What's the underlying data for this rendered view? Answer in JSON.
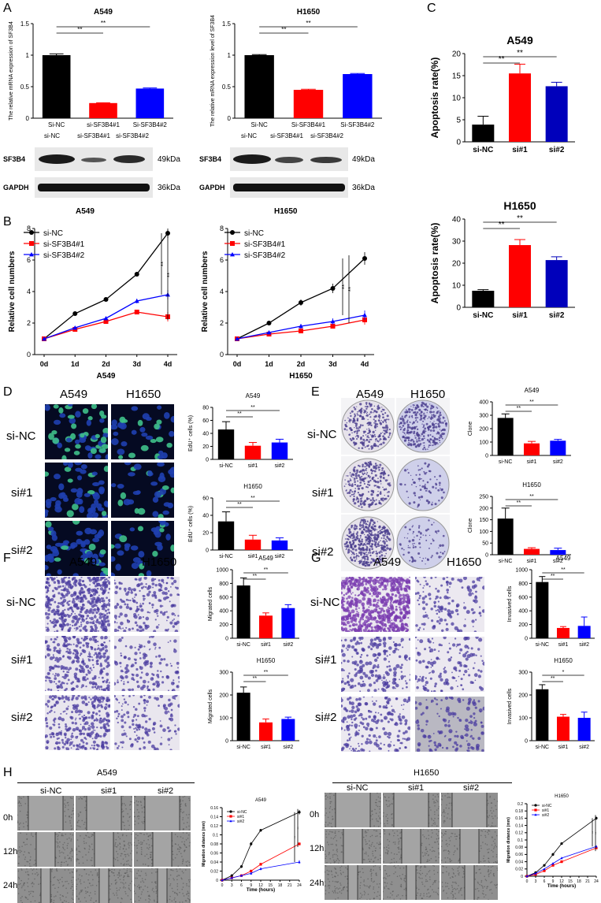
{
  "panels": {
    "A": "A",
    "B": "B",
    "C": "C",
    "D": "D",
    "E": "E",
    "F": "F",
    "G": "G",
    "H": "H"
  },
  "sig": {
    "dstar": "**",
    "star": "*"
  },
  "groups_long": [
    "si-NC",
    "si-SF3B4#1",
    "si-SF3B4#2"
  ],
  "groups_short": [
    "si-NC",
    "si#1",
    "si#2"
  ],
  "lines_short": [
    "si-NC",
    "si#1",
    "si#2"
  ],
  "cells": {
    "a549": "A549",
    "h1650": "H1650"
  },
  "blot": {
    "sf3b4": "SF3B4",
    "gapdh": "GAPDH",
    "kda49": "49kDa",
    "kda36": "36kDa"
  },
  "times": [
    "0h",
    "12h",
    "24h"
  ],
  "chart_data": [
    {
      "id": "A_A549",
      "type": "bar",
      "title": "A549",
      "ylabel": "The relative mRNA expression of SF3B4",
      "categories": [
        "Si-NC",
        "si-SF3B4#1",
        "Si-SF3B4#2"
      ],
      "values": [
        1.0,
        0.24,
        0.47
      ],
      "errors": [
        0.02,
        0.005,
        0.01
      ],
      "ylim": [
        0,
        1.5
      ],
      "yticks": [
        0,
        0.5,
        1.0,
        1.5
      ],
      "colors": [
        "#000000",
        "#ff0000",
        "#0000ff"
      ]
    },
    {
      "id": "A_H1650",
      "type": "bar",
      "title": "H1650",
      "ylabel": "The relative mRNA expression level of SF3B4",
      "categories": [
        "Si-NC",
        "Si-SF3B4#1",
        "Si-SF3B4#2"
      ],
      "values": [
        1.0,
        0.45,
        0.7
      ],
      "errors": [
        0.01,
        0.01,
        0.01
      ],
      "ylim": [
        0,
        1.5
      ],
      "yticks": [
        0,
        0.5,
        1.0,
        1.5
      ],
      "colors": [
        "#000000",
        "#ff0000",
        "#0000ff"
      ]
    },
    {
      "id": "C_A549",
      "type": "bar",
      "title": "A549",
      "ylabel": "Apoptosis rate(%)",
      "categories": [
        "si-NC",
        "si#1",
        "si#2"
      ],
      "values": [
        3.9,
        15.5,
        12.6
      ],
      "errors": [
        1.9,
        2.1,
        0.9
      ],
      "ylim": [
        0,
        20
      ],
      "yticks": [
        0,
        5,
        10,
        15,
        20
      ],
      "colors": [
        "#000000",
        "#ff0000",
        "#0000bb"
      ]
    },
    {
      "id": "C_H1650",
      "type": "bar",
      "title": "H1650",
      "ylabel": "Apoptosis rate(%)",
      "categories": [
        "si-NC",
        "si#1",
        "si#2"
      ],
      "values": [
        7.5,
        28.2,
        21.4
      ],
      "errors": [
        0.5,
        2.5,
        1.5
      ],
      "ylim": [
        0,
        40
      ],
      "yticks": [
        0,
        10,
        20,
        30,
        40
      ],
      "colors": [
        "#000000",
        "#ff0000",
        "#0000bb"
      ]
    },
    {
      "id": "B_A549",
      "type": "line",
      "xlabel": "A549",
      "ylabel": "Relative cell numbers",
      "x": [
        "0d",
        "1d",
        "2d",
        "3d",
        "4d"
      ],
      "ylim": [
        0,
        8
      ],
      "yticks": [
        0,
        2,
        4,
        6,
        8
      ],
      "series": [
        {
          "name": "si-NC",
          "values": [
            1.0,
            2.6,
            3.5,
            5.1,
            7.7
          ],
          "errors": [
            0.05,
            0.1,
            0.1,
            0.15,
            0.3
          ],
          "color": "#000000",
          "marker": "circle"
        },
        {
          "name": "si-SF3B4#1",
          "values": [
            1.0,
            1.6,
            2.1,
            2.7,
            2.4
          ],
          "errors": [
            0.05,
            0.1,
            0.1,
            0.15,
            0.3
          ],
          "color": "#ff0000",
          "marker": "square"
        },
        {
          "name": "si-SF3B4#2",
          "values": [
            1.0,
            1.7,
            2.3,
            3.4,
            3.8
          ],
          "errors": [
            0.05,
            0.1,
            0.1,
            0.15,
            0.3
          ],
          "color": "#0000ff",
          "marker": "triangle"
        }
      ]
    },
    {
      "id": "B_H1650",
      "type": "line",
      "xlabel": "H1650",
      "ylabel": "Relative cell numbers",
      "x": [
        "0d",
        "1d",
        "2d",
        "3d",
        "4d"
      ],
      "ylim": [
        0,
        8
      ],
      "yticks": [
        0,
        2,
        4,
        6,
        8
      ],
      "series": [
        {
          "name": "si-NC",
          "values": [
            1.0,
            2.0,
            3.3,
            4.2,
            6.1
          ],
          "errors": [
            0.05,
            0.1,
            0.2,
            0.3,
            0.4
          ],
          "color": "#000000",
          "marker": "circle"
        },
        {
          "name": "si-SF3B4#1",
          "values": [
            1.0,
            1.3,
            1.5,
            1.8,
            2.2
          ],
          "errors": [
            0.05,
            0.1,
            0.1,
            0.15,
            0.3
          ],
          "color": "#ff0000",
          "marker": "square"
        },
        {
          "name": "si-SF3B4#2",
          "values": [
            1.0,
            1.4,
            1.8,
            2.1,
            2.5
          ],
          "errors": [
            0.05,
            0.1,
            0.15,
            0.2,
            0.3
          ],
          "color": "#0000ff",
          "marker": "triangle"
        }
      ]
    },
    {
      "id": "D_A549",
      "type": "bar",
      "title": "A549",
      "ylabel": "EdU⁺ cells (%)",
      "categories": [
        "si-NC",
        "si#1",
        "si#2"
      ],
      "values": [
        46,
        21,
        26
      ],
      "errors": [
        12,
        5,
        5
      ],
      "ylim": [
        0,
        80
      ],
      "yticks": [
        0,
        20,
        40,
        60,
        80
      ],
      "colors": [
        "#000000",
        "#ff0000",
        "#0000ff"
      ]
    },
    {
      "id": "D_H1650",
      "type": "bar",
      "title": "H1650",
      "ylabel": "EdU⁺ cells (%)",
      "categories": [
        "si-NC",
        "si#1",
        "si#2"
      ],
      "values": [
        33,
        12,
        11
      ],
      "errors": [
        11,
        5,
        3
      ],
      "ylim": [
        0,
        60
      ],
      "yticks": [
        0,
        20,
        40,
        60
      ],
      "colors": [
        "#000000",
        "#ff0000",
        "#0000ff"
      ]
    },
    {
      "id": "E_A549",
      "type": "bar",
      "title": "A549",
      "ylabel": "Clone",
      "categories": [
        "si-NC",
        "si#1",
        "si#2"
      ],
      "values": [
        280,
        90,
        110
      ],
      "errors": [
        30,
        15,
        10
      ],
      "ylim": [
        0,
        400
      ],
      "yticks": [
        0,
        100,
        200,
        300,
        400
      ],
      "colors": [
        "#000000",
        "#ff0000",
        "#0000ff"
      ]
    },
    {
      "id": "E_H1650",
      "type": "bar",
      "title": "H1650",
      "ylabel": "Clone",
      "categories": [
        "si-NC",
        "si#1",
        "si#2"
      ],
      "values": [
        155,
        25,
        20
      ],
      "errors": [
        45,
        5,
        8
      ],
      "ylim": [
        0,
        250
      ],
      "yticks": [
        0,
        50,
        100,
        150,
        200,
        250
      ],
      "colors": [
        "#000000",
        "#ff0000",
        "#0000ff"
      ]
    },
    {
      "id": "F_A549",
      "type": "bar",
      "title": "A549",
      "ylabel": "Migrated cells",
      "categories": [
        "si-NC",
        "si#1",
        "si#2"
      ],
      "values": [
        770,
        330,
        440
      ],
      "errors": [
        110,
        40,
        50
      ],
      "ylim": [
        0,
        1000
      ],
      "yticks": [
        0,
        200,
        400,
        600,
        800,
        1000
      ],
      "colors": [
        "#000000",
        "#ff0000",
        "#0000ff"
      ]
    },
    {
      "id": "F_H1650",
      "type": "bar",
      "title": "H1650",
      "ylabel": "Migrated cells",
      "categories": [
        "si-NC",
        "si#1",
        "si#2"
      ],
      "values": [
        210,
        80,
        95
      ],
      "errors": [
        25,
        15,
        8
      ],
      "ylim": [
        0,
        300
      ],
      "yticks": [
        0,
        100,
        200,
        300
      ],
      "colors": [
        "#000000",
        "#ff0000",
        "#0000ff"
      ]
    },
    {
      "id": "G_A549",
      "type": "bar",
      "title": "A549",
      "ylabel": "Invasived cells",
      "categories": [
        "si-NC",
        "si#1",
        "si#2"
      ],
      "values": [
        820,
        150,
        180
      ],
      "errors": [
        80,
        20,
        130
      ],
      "ylim": [
        0,
        1000
      ],
      "yticks": [
        0,
        200,
        400,
        600,
        800,
        1000
      ],
      "colors": [
        "#000000",
        "#ff0000",
        "#0000ff"
      ]
    },
    {
      "id": "G_H1650",
      "type": "bar",
      "title": "H1650",
      "ylabel": "Invasived cells",
      "categories": [
        "si-NC",
        "si#1",
        "si#2"
      ],
      "values": [
        225,
        105,
        100
      ],
      "errors": [
        20,
        10,
        25
      ],
      "ylim": [
        0,
        300
      ],
      "yticks": [
        0,
        100,
        200,
        300
      ],
      "colors": [
        "#000000",
        "#ff0000",
        "#0000ff"
      ]
    },
    {
      "id": "H_A549",
      "type": "line",
      "title": "A549",
      "xlabel": "Time (hours)",
      "ylabel": "Migration distance (mm)",
      "x": [
        0,
        3,
        6,
        9,
        12,
        24
      ],
      "xticks": [
        0,
        3,
        6,
        9,
        12,
        15,
        18,
        21,
        24
      ],
      "xlim": [
        0,
        24
      ],
      "ylim": [
        0,
        0.16
      ],
      "yticks": [
        0,
        0.02,
        0.04,
        0.06,
        0.08,
        0.1,
        0.12,
        0.14,
        0.16
      ],
      "series": [
        {
          "name": "si-NC",
          "values": [
            0,
            0.01,
            0.03,
            0.08,
            0.11,
            0.15
          ],
          "errors": [
            0,
            0.003,
            0.003,
            0.004,
            0.003,
            0.005
          ],
          "color": "#000000",
          "marker": "circle"
        },
        {
          "name": "si#1",
          "values": [
            0,
            0.005,
            0.01,
            0.02,
            0.035,
            0.08
          ],
          "errors": [
            0,
            0.002,
            0.002,
            0.003,
            0.003,
            0.003
          ],
          "color": "#ff0000",
          "marker": "square"
        },
        {
          "name": "si#2",
          "values": [
            0,
            0.005,
            0.01,
            0.015,
            0.025,
            0.04
          ],
          "errors": [
            0,
            0.002,
            0.002,
            0.003,
            0.003,
            0.004
          ],
          "color": "#0000ff",
          "marker": "triangle"
        }
      ]
    },
    {
      "id": "H_H1650",
      "type": "line",
      "title": "H1650",
      "xlabel": "Time (hours)",
      "ylabel": "Migration distance (mm)",
      "x": [
        0,
        3,
        6,
        9,
        12,
        24
      ],
      "xticks": [
        0,
        3,
        6,
        9,
        12,
        15,
        18,
        21,
        24
      ],
      "xlim": [
        0,
        24
      ],
      "ylim": [
        0,
        0.2
      ],
      "yticks": [
        0,
        0.02,
        0.04,
        0.06,
        0.08,
        0.1,
        0.12,
        0.14,
        0.16,
        0.18,
        0.2
      ],
      "series": [
        {
          "name": "si-NC",
          "values": [
            0,
            0.01,
            0.03,
            0.06,
            0.09,
            0.16
          ],
          "errors": [
            0,
            0.002,
            0.003,
            0.004,
            0.003,
            0.004
          ],
          "color": "#000000",
          "marker": "circle"
        },
        {
          "name": "si#1",
          "values": [
            0,
            0.005,
            0.015,
            0.03,
            0.04,
            0.078
          ],
          "errors": [
            0,
            0.002,
            0.002,
            0.003,
            0.003,
            0.003
          ],
          "color": "#ff0000",
          "marker": "square"
        },
        {
          "name": "si#2",
          "values": [
            0,
            0.008,
            0.02,
            0.035,
            0.05,
            0.082
          ],
          "errors": [
            0,
            0.002,
            0.002,
            0.003,
            0.003,
            0.003
          ],
          "color": "#0000ff",
          "marker": "triangle"
        }
      ]
    }
  ]
}
